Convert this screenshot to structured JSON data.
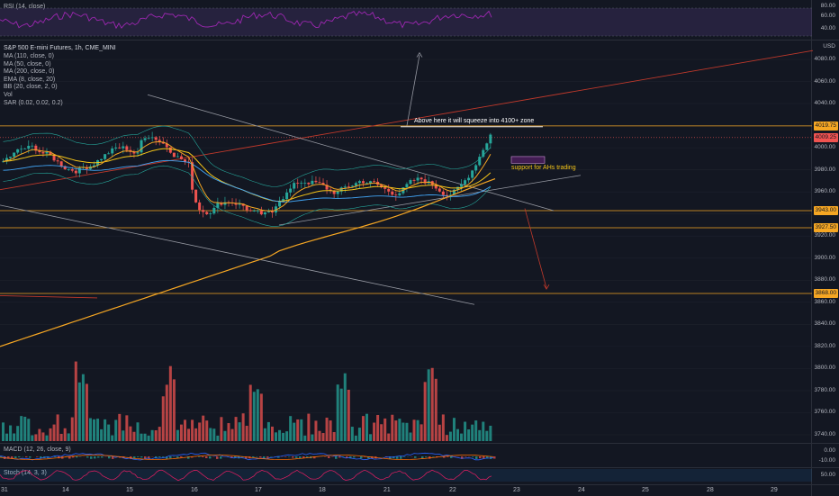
{
  "rsi_panel": {
    "legend": "RSI (14, close)",
    "ticks": [
      "80.00",
      "60.00",
      "40.00"
    ]
  },
  "main": {
    "title": "S&P 500 E-mini Futures, 1h, CME_MINI",
    "indicators": [
      "MA (110, close, 0)",
      "MA (50, close, 0)",
      "MA (200, close, 0)",
      "EMA (8, close, 20)",
      "BB (20, close, 2, 0)",
      "Vol",
      "SAR (0.02, 0.02, 0.2)"
    ],
    "currency": "USD",
    "ticks": [
      "4080.00",
      "4060.00",
      "4040.00",
      "4000.00",
      "3980.00",
      "3960.00",
      "3920.00",
      "3900.00",
      "3880.00",
      "3860.00",
      "3840.00",
      "3820.00",
      "3800.00",
      "3780.00",
      "3760.00",
      "3740.00"
    ],
    "price_labels": [
      {
        "text": "4019.75",
        "color": "#f5a623"
      },
      {
        "text": "4009.25",
        "color": "#ef5350"
      },
      {
        "text": "3943.00",
        "color": "#f5a623"
      },
      {
        "text": "3927.50",
        "color": "#f5a623"
      },
      {
        "text": "3868.00",
        "color": "#f5a623"
      }
    ],
    "annotation_top": "Above here it will squeeze into 4100+ zone",
    "annotation_support": "support for AHs trading"
  },
  "macd_panel": {
    "legend": "MACD (12, 26, close, 9)",
    "ticks": [
      "0.00",
      "-10.00"
    ]
  },
  "stoch_panel": {
    "legend": "Stoch (14, 3, 3)",
    "ticks": [
      "50.00"
    ]
  },
  "x_axis": [
    "31",
    "14",
    "15",
    "16",
    "17",
    "18",
    "21",
    "22",
    "23",
    "24",
    "25",
    "28",
    "29"
  ],
  "colors": {
    "bg": "#131722",
    "up": "#26a69a",
    "down": "#ef5350",
    "orange": "#f5a623",
    "rsi": "#9c27b0"
  }
}
